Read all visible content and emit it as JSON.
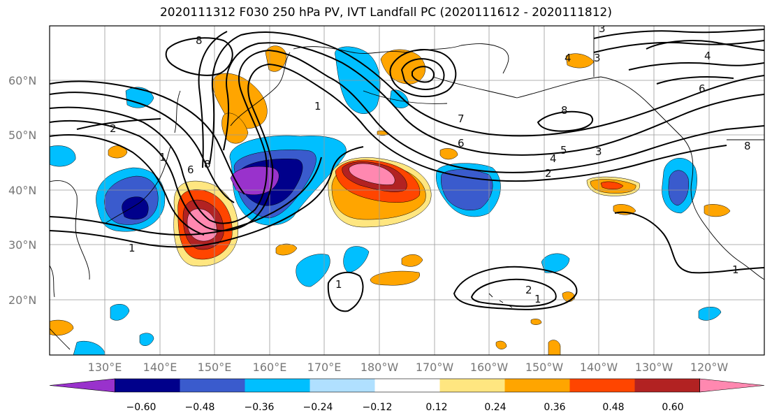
{
  "title": "2020111312 F030 250 hPa PV, IVT Landfall PC (2020111612 - 2020111812)",
  "map": {
    "lon_labels": [
      "130°E",
      "140°E",
      "150°E",
      "160°E",
      "170°E",
      "180°W",
      "170°W",
      "160°W",
      "150°W",
      "140°W",
      "130°W",
      "120°W"
    ],
    "lat_labels": [
      "60°N",
      "50°N",
      "40°N",
      "30°N",
      "20°N"
    ],
    "contour_labels": [
      "8",
      "2",
      "1",
      "1",
      "8",
      "6",
      "7",
      "1",
      "8",
      "6",
      "5",
      "4",
      "3",
      "2",
      "6",
      "4",
      "3",
      "3",
      "4",
      "8",
      "1",
      "2",
      "1",
      "1"
    ]
  },
  "colorbar": {
    "ticks": [
      "−0.60",
      "−0.48",
      "−0.36",
      "−0.24",
      "−0.12",
      "0.12",
      "0.24",
      "0.36",
      "0.48",
      "0.60"
    ],
    "colors": [
      "#9932CC",
      "#00008B",
      "#3A5BCD",
      "#00BFFF",
      "#B0E0FF",
      "#FFFFFF",
      "#FFE680",
      "#FFA500",
      "#FF4500",
      "#B22222",
      "#FF88B0"
    ]
  }
}
